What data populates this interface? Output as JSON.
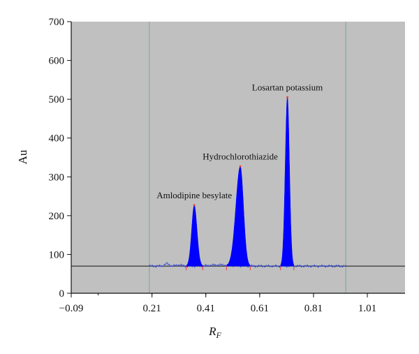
{
  "chart_data": {
    "type": "area",
    "xlabel": "R",
    "xlabel_sub": "F",
    "ylabel": "Au",
    "xlim": [
      -0.09,
      1.15
    ],
    "ylim": [
      0,
      700
    ],
    "xticks": [
      "−0.09",
      "0.21",
      "0.41",
      "0.61",
      "0.81",
      "1.01"
    ],
    "xtick_values": [
      -0.09,
      0.21,
      0.41,
      0.61,
      0.81,
      1.01
    ],
    "yticks": [
      "0",
      "100",
      "200",
      "300",
      "400",
      "500",
      "600",
      "700"
    ],
    "ytick_values": [
      0,
      100,
      200,
      300,
      400,
      500,
      600,
      700
    ],
    "grid": false,
    "background_color": "#c0c0c0",
    "baseline": 70,
    "start_marker_x": 0.2,
    "end_marker_x": 0.93,
    "colors": {
      "peak_fill": "#0000ff",
      "trace": "#3a4fd0",
      "baseline": "#111111",
      "marker": "#7aa88a",
      "integration_tick": "#e04040"
    },
    "peaks": [
      {
        "name": "Amlodipine besylate",
        "rf": 0.367,
        "height": 227,
        "left": 0.337,
        "right": 0.399
      },
      {
        "name": "Hydrochlorothiazide",
        "rf": 0.538,
        "height": 327,
        "left": 0.487,
        "right": 0.575
      },
      {
        "name": "Losartan potassium",
        "rf": 0.713,
        "height": 505,
        "left": 0.688,
        "right": 0.737
      }
    ]
  }
}
